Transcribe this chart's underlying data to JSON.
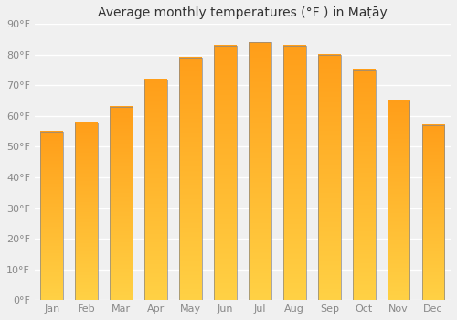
{
  "title": "Average monthly temperatures (°F ) in Maṭāy",
  "months": [
    "Jan",
    "Feb",
    "Mar",
    "Apr",
    "May",
    "Jun",
    "Jul",
    "Aug",
    "Sep",
    "Oct",
    "Nov",
    "Dec"
  ],
  "values": [
    55,
    58,
    63,
    72,
    79,
    83,
    84,
    83,
    80,
    75,
    65,
    57
  ],
  "bar_color_top": "#FFCA44",
  "bar_color_bottom": "#FFA020",
  "ylim": [
    0,
    90
  ],
  "yticks": [
    0,
    10,
    20,
    30,
    40,
    50,
    60,
    70,
    80,
    90
  ],
  "ytick_labels": [
    "0°F",
    "10°F",
    "20°F",
    "30°F",
    "40°F",
    "50°F",
    "60°F",
    "70°F",
    "80°F",
    "90°F"
  ],
  "bg_color": "#f0f0f0",
  "grid_color": "#ffffff",
  "bar_border_color": "#888888",
  "title_fontsize": 10,
  "tick_fontsize": 8,
  "tick_color": "#888888"
}
